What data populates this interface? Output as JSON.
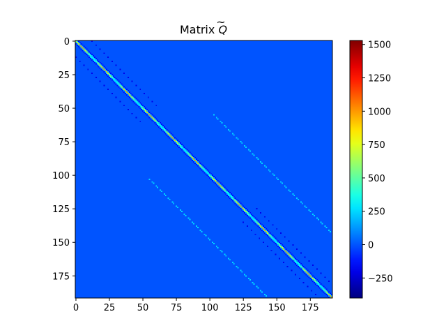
{
  "chart_data": {
    "type": "heatmap",
    "title": "Matrix Q̃",
    "title_prefix": "Matrix ",
    "title_symbol": "Q",
    "title_accent": "~",
    "matrix_size": 192,
    "x_ticks": [
      0,
      25,
      50,
      75,
      100,
      125,
      150,
      175
    ],
    "y_ticks": [
      0,
      25,
      50,
      75,
      100,
      125,
      150,
      175
    ],
    "x_tick_labels": [
      "0",
      "25",
      "50",
      "75",
      "100",
      "125",
      "150",
      "175"
    ],
    "y_tick_labels": [
      "0",
      "25",
      "50",
      "75",
      "100",
      "125",
      "150",
      "175"
    ],
    "xlim": [
      -0.5,
      191.5
    ],
    "ylim": [
      191.5,
      -0.5
    ],
    "colormap": "jet",
    "color_range": [
      -400,
      1530
    ],
    "colorbar_ticks": [
      -250,
      0,
      250,
      500,
      750,
      1000,
      1250,
      1500
    ],
    "colorbar_tick_labels": [
      "−250",
      "0",
      "250",
      "500",
      "750",
      "1000",
      "1250",
      "1500"
    ],
    "background_value": 0,
    "diagonal_value_range": [
      300,
      1000
    ],
    "offdiagonal_bands": [
      {
        "row_start": 55,
        "row_end": 190,
        "col_offset": 48,
        "value": 250
      },
      {
        "row_start": 105,
        "row_end": 190,
        "col_offset": -48,
        "value": 250
      },
      {
        "row_start": 0,
        "row_end": 60,
        "col_offset": -12,
        "value": -200
      },
      {
        "row_start": 125,
        "row_end": 190,
        "col_offset": 10,
        "value": -200
      }
    ]
  }
}
